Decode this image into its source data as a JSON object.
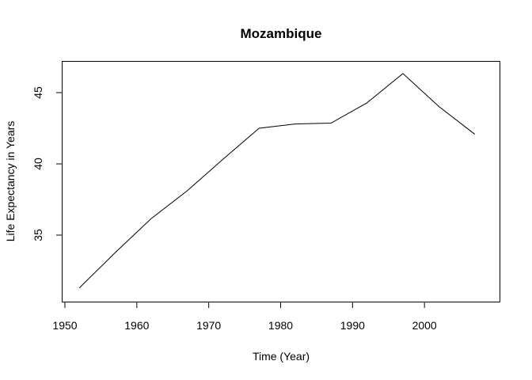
{
  "chart_data": {
    "type": "line",
    "title": "Mozambique",
    "xlabel": "Time (Year)",
    "ylabel": "Life Expectancy in Years",
    "xlim": [
      1950,
      2010
    ],
    "ylim": [
      30.5,
      47
    ],
    "x_ticks": [
      1950,
      1960,
      1970,
      1980,
      1990,
      2000
    ],
    "y_ticks": [
      35,
      40,
      45
    ],
    "grid": false,
    "legend": "none",
    "series": [
      {
        "x": [
          1952,
          1957,
          1962,
          1967,
          1972,
          1977,
          1982,
          1987,
          1992,
          1997,
          2002,
          2007
        ],
        "values": [
          31.29,
          33.78,
          36.16,
          38.11,
          40.33,
          42.5,
          42.8,
          42.86,
          44.28,
          46.34,
          44.03,
          42.08
        ]
      }
    ],
    "colors": {
      "line": "#000000",
      "axes": "#000000",
      "background": "#ffffff"
    }
  }
}
